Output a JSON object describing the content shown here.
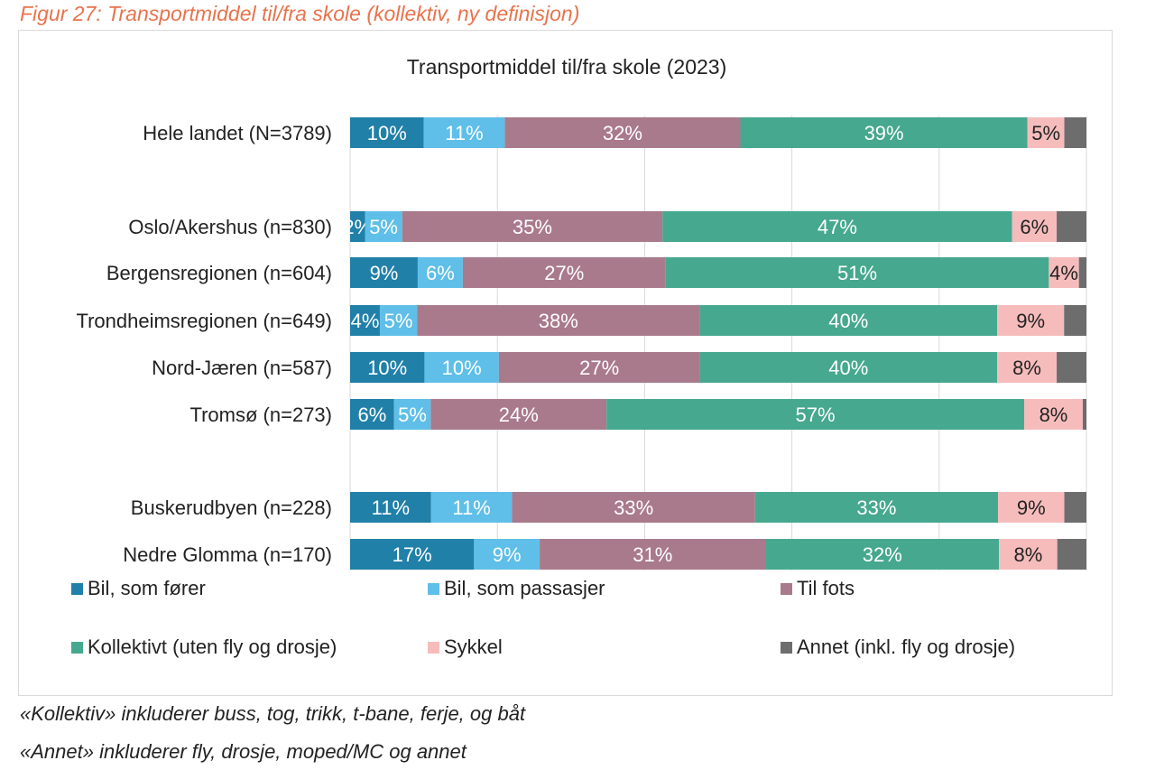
{
  "figure_caption": "Figur 27: Transportmiddel til/fra skole (kollektiv, ny definisjon)",
  "notes": [
    "«Kollektiv» inkluderer buss, tog, trikk, t-bane, ferje, og båt",
    "«Annet» inkluderer fly, drosje, moped/MC og annet"
  ],
  "chart_data": {
    "type": "bar",
    "orientation": "horizontal",
    "stacked": true,
    "title": "Transportmiddel til/fra skole (2023)",
    "xlim": [
      0,
      100
    ],
    "grid": true,
    "legend_position": "bottom",
    "categories": [
      "Hele landet (N=3789)",
      "Oslo/Akershus (n=830)",
      "Bergensregionen (n=604)",
      "Trondheimsregionen (n=649)",
      "Nord-Jæren (n=587)",
      "Tromsø (n=273)",
      "Buskerudbyen (n=228)",
      "Nedre Glomma (n=170)"
    ],
    "series": [
      {
        "name": "Bil, som fører",
        "color": "#2080a8",
        "values": [
          10,
          2,
          9,
          4,
          10,
          6,
          11,
          17
        ],
        "labels": [
          "10%",
          "2%",
          "9%",
          "4%",
          "10%",
          "6%",
          "11%",
          "17%"
        ]
      },
      {
        "name": "Bil, som passasjer",
        "color": "#5fbfe8",
        "values": [
          11,
          5,
          6,
          5,
          10,
          5,
          11,
          9
        ],
        "labels": [
          "11%",
          "5%",
          "6%",
          "5%",
          "10%",
          "5%",
          "11%",
          "9%"
        ]
      },
      {
        "name": "Til fots",
        "color": "#a97a8b",
        "values": [
          32,
          35,
          27,
          38,
          27,
          24,
          33,
          31
        ],
        "labels": [
          "32%",
          "35%",
          "27%",
          "38%",
          "27%",
          "24%",
          "33%",
          "31%"
        ]
      },
      {
        "name": "Kollektivt (uten fly og drosje)",
        "color": "#46a88f",
        "values": [
          39,
          47,
          51,
          40,
          40,
          57,
          33,
          32
        ],
        "labels": [
          "39%",
          "47%",
          "51%",
          "40%",
          "40%",
          "57%",
          "33%",
          "32%"
        ]
      },
      {
        "name": "Sykkel",
        "color": "#f6bcbc",
        "values": [
          5,
          6,
          4,
          9,
          8,
          8,
          9,
          8
        ],
        "labels": [
          "5%",
          "6%",
          "4%",
          "9%",
          "8%",
          "8%",
          "9%",
          "8%"
        ]
      },
      {
        "name": "Annet (inkl. fly og drosje)",
        "color": "#6d6d6d",
        "values": [
          3,
          4,
          1,
          3,
          4,
          0.5,
          3,
          4
        ],
        "labels": [
          "",
          "",
          "",
          "",
          "",
          "",
          "",
          ""
        ]
      }
    ]
  }
}
